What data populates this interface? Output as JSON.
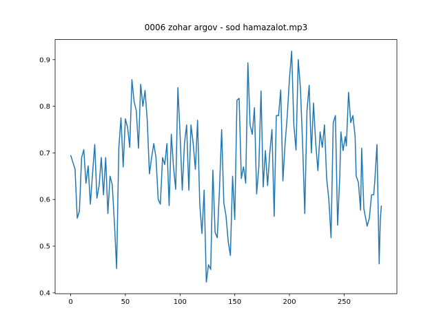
{
  "chart_data": {
    "type": "line",
    "title": "0006 zohar argov - sod hamazalot.mp3",
    "x": [
      0,
      2,
      4,
      6,
      8,
      10,
      12,
      14,
      16,
      18,
      20,
      22,
      24,
      26,
      28,
      30,
      32,
      34,
      36,
      38,
      40,
      42,
      44,
      46,
      48,
      50,
      52,
      54,
      56,
      58,
      60,
      62,
      64,
      66,
      68,
      70,
      72,
      74,
      76,
      78,
      80,
      82,
      84,
      86,
      88,
      90,
      92,
      94,
      96,
      98,
      100,
      102,
      104,
      106,
      108,
      110,
      112,
      114,
      116,
      118,
      120,
      122,
      124,
      126,
      128,
      130,
      132,
      134,
      136,
      138,
      140,
      142,
      144,
      146,
      148,
      150,
      152,
      154,
      156,
      158,
      160,
      162,
      164,
      166,
      168,
      170,
      172,
      174,
      176,
      178,
      180,
      182,
      184,
      186,
      188,
      190,
      192,
      194,
      196,
      198,
      200,
      202,
      204,
      206,
      208,
      210,
      212,
      214,
      216,
      218,
      220,
      222,
      224,
      226,
      228,
      230,
      232,
      234,
      236,
      238,
      240,
      242,
      244,
      246,
      247,
      249,
      251,
      252,
      254,
      256,
      258,
      260,
      261,
      263,
      265,
      266,
      268,
      271,
      273,
      275,
      277,
      278,
      280,
      282,
      283,
      284
    ],
    "series": [
      {
        "color": "#1f77b4",
        "values": [
          0.695,
          0.68,
          0.665,
          0.56,
          0.575,
          0.69,
          0.707,
          0.635,
          0.672,
          0.59,
          0.655,
          0.718,
          0.603,
          0.63,
          0.69,
          0.61,
          0.69,
          0.57,
          0.65,
          0.632,
          0.55,
          0.452,
          0.71,
          0.775,
          0.67,
          0.773,
          0.755,
          0.712,
          0.857,
          0.81,
          0.79,
          0.71,
          0.847,
          0.8,
          0.834,
          0.77,
          0.655,
          0.69,
          0.72,
          0.69,
          0.6,
          0.59,
          0.69,
          0.675,
          0.72,
          0.587,
          0.74,
          0.67,
          0.622,
          0.84,
          0.74,
          0.62,
          0.72,
          0.76,
          0.62,
          0.76,
          0.72,
          0.665,
          0.77,
          0.59,
          0.527,
          0.62,
          0.423,
          0.46,
          0.45,
          0.663,
          0.53,
          0.518,
          0.62,
          0.75,
          0.593,
          0.565,
          0.51,
          0.48,
          0.65,
          0.557,
          0.813,
          0.817,
          0.645,
          0.67,
          0.635,
          0.893,
          0.76,
          0.74,
          0.797,
          0.612,
          0.67,
          0.833,
          0.627,
          0.705,
          0.63,
          0.7,
          0.75,
          0.564,
          0.78,
          0.78,
          0.835,
          0.64,
          0.72,
          0.78,
          0.86,
          0.918,
          0.76,
          0.706,
          0.9,
          0.84,
          0.72,
          0.57,
          0.79,
          0.845,
          0.7,
          0.807,
          0.72,
          0.662,
          0.745,
          0.712,
          0.76,
          0.645,
          0.6,
          0.518,
          0.765,
          0.78,
          0.545,
          0.65,
          0.745,
          0.705,
          0.735,
          0.715,
          0.83,
          0.765,
          0.78,
          0.735,
          0.65,
          0.637,
          0.577,
          0.71,
          0.58,
          0.543,
          0.56,
          0.61,
          0.61,
          0.64,
          0.718,
          0.462,
          0.555,
          0.587
        ]
      }
    ],
    "xlim": [
      -14.2,
      298.2
    ],
    "xticks": [
      0,
      50,
      100,
      150,
      200,
      250
    ],
    "ylim": [
      0.398,
      0.943
    ],
    "yticks": [
      0.4,
      0.5,
      0.6,
      0.7,
      0.8,
      0.9
    ],
    "grid": false
  }
}
